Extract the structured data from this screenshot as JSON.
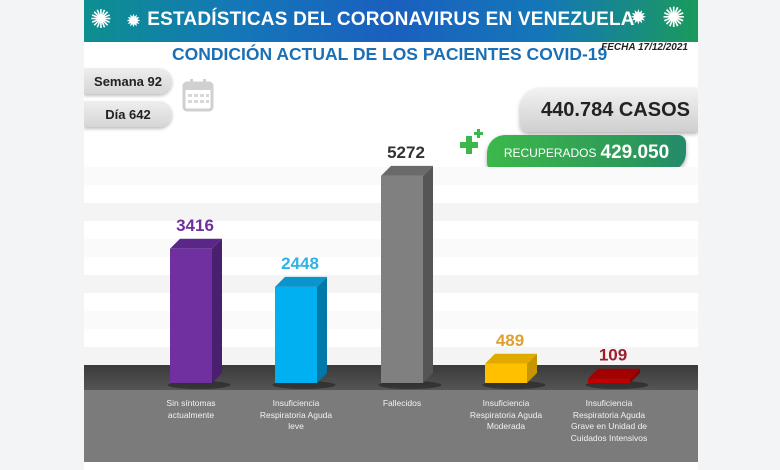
{
  "header": {
    "title": "ESTADÍSTICAS DEL CORONAVIRUS EN VENEZUELA",
    "subtitle": "CONDICIÓN ACTUAL DE LOS PACIENTES COVID-19",
    "fecha": "FECHA 17/12/2021",
    "icons": [
      "virus-icon",
      "virus-icon",
      "virus-icon",
      "virus-icon"
    ]
  },
  "info": {
    "semana": "Semana 92",
    "dia": "Día 642",
    "calendar_icon": "calendar-icon"
  },
  "totals": {
    "casos": "440.784 CASOS",
    "recuperados_label": "RECUPERADOS",
    "recuperados_value": "429.050",
    "plus_icon": "medical-plus-icon"
  },
  "colors": {
    "banner_start": "#0d8f8f",
    "banner_mid": "#1a5fbf",
    "banner_end": "#1b9a5c",
    "subtitle": "#1a6fb5",
    "recuperados": "#2e9a58"
  },
  "chart_data": {
    "type": "bar",
    "title": "CONDICIÓN ACTUAL DE LOS PACIENTES COVID-19",
    "xlabel": "",
    "ylabel": "",
    "ylim": [
      0,
      6000
    ],
    "grid": true,
    "style": "3d",
    "categories": [
      "Sin síntomas actualmente",
      "Insuficiencia Respiratoria Aguda leve",
      "Fallecidos",
      "Insuficiencia Respiratoria Aguda Moderada",
      "Insuficiencia Respiratoria Aguda Grave en Unidad de Cuidados Intensivos"
    ],
    "label_lines": [
      [
        "Sin síntomas",
        "actualmente"
      ],
      [
        "Insuficiencia",
        "Respiratoria Aguda",
        "leve"
      ],
      [
        "Fallecidos"
      ],
      [
        "Insuficiencia",
        "Respiratoria Aguda",
        "Moderada"
      ],
      [
        "Insuficiencia",
        "Respiratoria Aguda",
        "Grave en Unidad de",
        "Cuidados Intensivos"
      ]
    ],
    "values": [
      3416,
      2448,
      5272,
      489,
      109
    ],
    "data_labels": [
      "3416",
      "2448",
      "5272",
      "489",
      "109"
    ],
    "colors": [
      "#7030a0",
      "#00b0f0",
      "#808080",
      "#ffc000",
      "#c00000"
    ],
    "side_colors": [
      "#4b1f6f",
      "#0078a8",
      "#555555",
      "#c79500",
      "#8a0000"
    ],
    "top_colors": [
      "#5a2687",
      "#0a95cc",
      "#6a6a6a",
      "#e0aa00",
      "#a30000"
    ],
    "label_colors": [
      "#7030a0",
      "#2eb3e6",
      "#333333",
      "#e0a030",
      "#a01c2c"
    ]
  }
}
